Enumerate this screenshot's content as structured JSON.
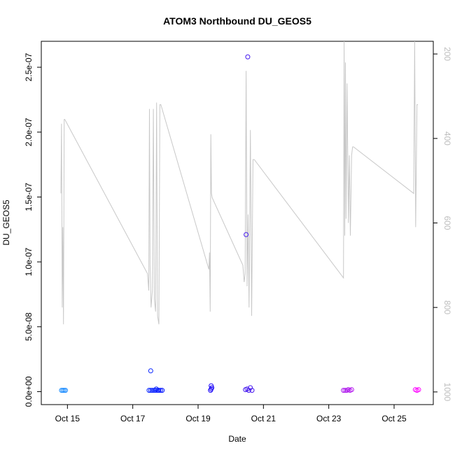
{
  "chart_data": {
    "type": "scatter",
    "title": "ATOM3 Northbound DU_GEOS5",
    "xlabel": "Date",
    "ylabel": "DU_GEOS5",
    "x_tick_labels": [
      "Oct 15",
      "Oct 17",
      "Oct 19",
      "Oct 21",
      "Oct 23",
      "Oct 25"
    ],
    "x_tick_days": [
      15,
      17,
      19,
      21,
      23,
      25
    ],
    "xlim_days": [
      14.2,
      26.2
    ],
    "ylim": [
      -1e-08,
      2.7e-07
    ],
    "y_ticks": [
      0,
      5e-08,
      1e-07,
      1.5e-07,
      2e-07,
      2.5e-07
    ],
    "y_tick_labels": [
      "0.0e+00",
      "5.0e-08",
      "1.0e-07",
      "1.5e-07",
      "2.0e-07",
      "2.5e-07"
    ],
    "y2_ticks": [
      200,
      400,
      600,
      800,
      1000
    ],
    "y2_tick_labels": [
      "200",
      "400",
      "600",
      "800",
      "1000"
    ],
    "y2lim_reversed": [
      1030,
      170
    ],
    "grid": false,
    "point_color_ramp": [
      "#1e90ff",
      "#0000ff",
      "#7b2be2",
      "#ff00ff"
    ],
    "line_color": "#c8c8c8",
    "series": [
      {
        "axis": "left",
        "x_days": [
          14.82,
          14.86,
          14.9,
          14.94,
          17.5,
          17.55,
          17.6,
          17.65,
          17.7,
          17.72,
          17.76,
          17.8,
          17.85,
          17.9,
          17.55,
          19.38,
          19.4,
          19.42,
          19.4,
          20.45,
          20.5,
          20.55,
          20.6,
          20.65,
          20.47,
          20.52,
          23.45,
          23.5,
          23.55,
          23.6,
          23.65,
          23.7,
          25.65,
          25.7,
          25.75
        ],
        "values": [
          1e-09,
          1e-09,
          1e-09,
          1e-09,
          1e-09,
          1e-09,
          1e-09,
          1e-09,
          1e-09,
          2e-09,
          1e-09,
          1e-09,
          1e-09,
          1e-09,
          1.6e-08,
          1e-09,
          2e-09,
          3e-09,
          4.5e-09,
          1.5e-09,
          2e-09,
          1e-09,
          3e-09,
          1e-09,
          1.21e-07,
          2.58e-07,
          1e-09,
          1e-09,
          1e-09,
          1.5e-09,
          1e-09,
          1.5e-09,
          1.5e-09,
          1e-09,
          1.5e-09
        ]
      },
      {
        "axis": "right",
        "x_days": [
          14.8,
          14.82,
          14.84,
          14.86,
          14.88,
          14.9,
          14.92,
          17.45,
          17.47,
          17.49,
          17.51,
          17.53,
          17.56,
          17.6,
          17.63,
          17.66,
          17.7,
          17.73,
          17.76,
          17.8,
          17.83,
          17.86,
          19.33,
          19.35,
          19.37,
          19.39,
          19.41,
          19.43,
          20.37,
          20.39,
          20.41,
          20.44,
          20.47,
          20.5,
          20.53,
          20.56,
          20.6,
          20.64,
          20.68,
          20.72,
          23.45,
          23.47,
          23.49,
          23.51,
          23.53,
          23.56,
          23.6,
          23.63,
          23.66,
          23.7,
          23.73,
          23.76,
          25.6,
          25.63,
          25.66,
          25.7,
          25.73
        ],
        "values": [
          530,
          365,
          800,
          610,
          840,
          355,
          355,
          720,
          740,
          760,
          330,
          700,
          800,
          760,
          330,
          780,
          810,
          315,
          820,
          840,
          320,
          320,
          710,
          670,
          810,
          390,
          530,
          540,
          700,
          720,
          740,
          720,
          240,
          750,
          580,
          800,
          380,
          820,
          450,
          450,
          730,
          170,
          630,
          220,
          590,
          270,
          600,
          440,
          630,
          440,
          420,
          420,
          530,
          170,
          610,
          320,
          320
        ]
      }
    ]
  }
}
